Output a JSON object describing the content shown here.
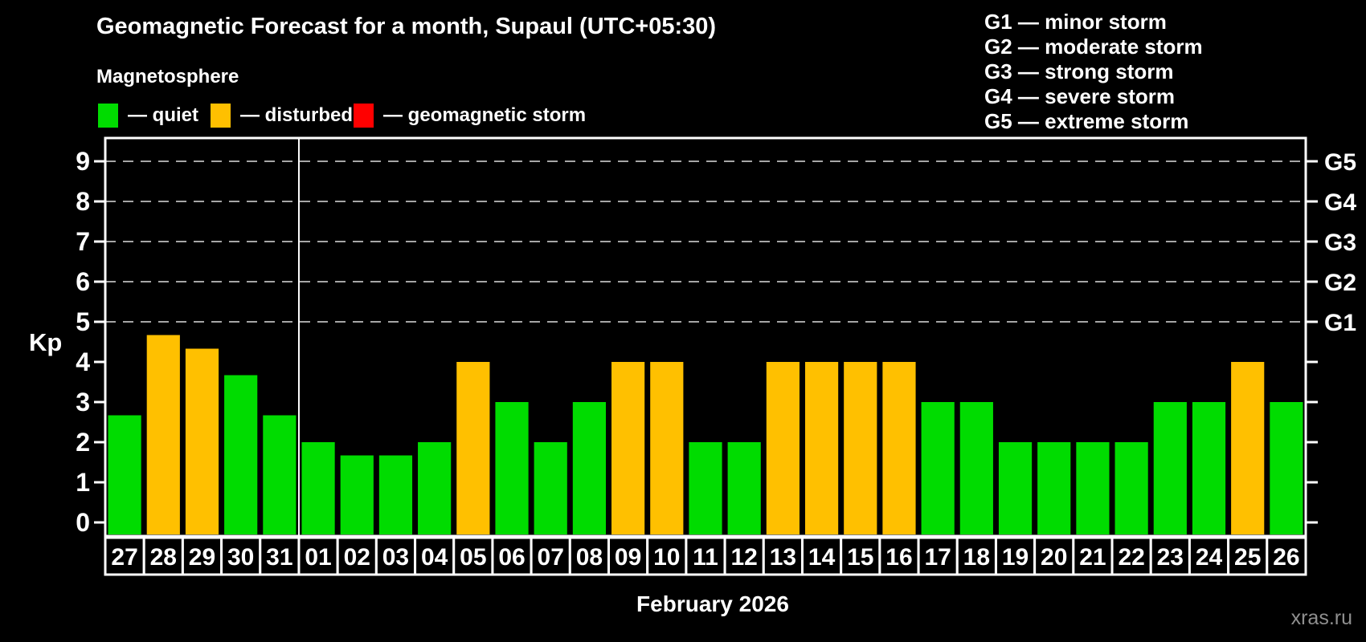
{
  "title": "Geomagnetic Forecast for a month, Supaul (UTC+05:30)",
  "subtitle": "Magnetosphere",
  "kp_legend": [
    {
      "status": "quiet",
      "label": "— quiet",
      "color": "#00dc00"
    },
    {
      "status": "disturbed",
      "label": "— disturbed",
      "color": "#ffc000"
    },
    {
      "status": "storm",
      "label": "— geomagnetic storm",
      "color": "#ff0000"
    }
  ],
  "g_legend": [
    {
      "label": "G1 — minor storm"
    },
    {
      "label": "G2 — moderate storm"
    },
    {
      "label": "G3 — strong storm"
    },
    {
      "label": "G4 — severe storm"
    },
    {
      "label": "G5 — extreme storm"
    }
  ],
  "watermark": "xras.ru",
  "chart_data": {
    "type": "bar",
    "title": "Geomagnetic Forecast for a month, Supaul (UTC+05:30)",
    "xlabel": "February 2026",
    "ylabel": "Kp",
    "ylim": [
      0,
      9
    ],
    "grid": "dashed horizontal gridlines at Kp 5,6,7,8,9 only",
    "legend_position": "top",
    "categories": [
      "27",
      "28",
      "29",
      "30",
      "31",
      "01",
      "02",
      "03",
      "04",
      "05",
      "06",
      "07",
      "08",
      "09",
      "10",
      "11",
      "12",
      "13",
      "14",
      "15",
      "16",
      "17",
      "18",
      "19",
      "20",
      "21",
      "22",
      "23",
      "24",
      "25",
      "26"
    ],
    "values": [
      2.67,
      4.67,
      4.33,
      3.67,
      2.67,
      2,
      1.67,
      1.67,
      2,
      4,
      3,
      2,
      3,
      4,
      4,
      2,
      2,
      4,
      4,
      4,
      4,
      3,
      3,
      2,
      2,
      2,
      2,
      3,
      3,
      4,
      3
    ],
    "statuses": [
      "quiet",
      "disturbed",
      "disturbed",
      "quiet",
      "quiet",
      "quiet",
      "quiet",
      "quiet",
      "quiet",
      "disturbed",
      "quiet",
      "quiet",
      "quiet",
      "disturbed",
      "disturbed",
      "quiet",
      "quiet",
      "disturbed",
      "disturbed",
      "disturbed",
      "disturbed",
      "quiet",
      "quiet",
      "quiet",
      "quiet",
      "quiet",
      "quiet",
      "quiet",
      "quiet",
      "disturbed",
      "quiet"
    ],
    "colors": {
      "quiet": "#00dc00",
      "disturbed": "#ffc000",
      "storm": "#ff0000"
    },
    "month_separator_before_category": "01",
    "y_ticks": [
      0,
      1,
      2,
      3,
      4,
      5,
      6,
      7,
      8,
      9
    ],
    "right_axis_labels": [
      {
        "kp": 5,
        "label": "G1"
      },
      {
        "kp": 6,
        "label": "G2"
      },
      {
        "kp": 7,
        "label": "G3"
      },
      {
        "kp": 8,
        "label": "G4"
      },
      {
        "kp": 9,
        "label": "G5"
      }
    ],
    "gridline_color": "#a6a6a6",
    "frame_color": "#ffffff"
  }
}
